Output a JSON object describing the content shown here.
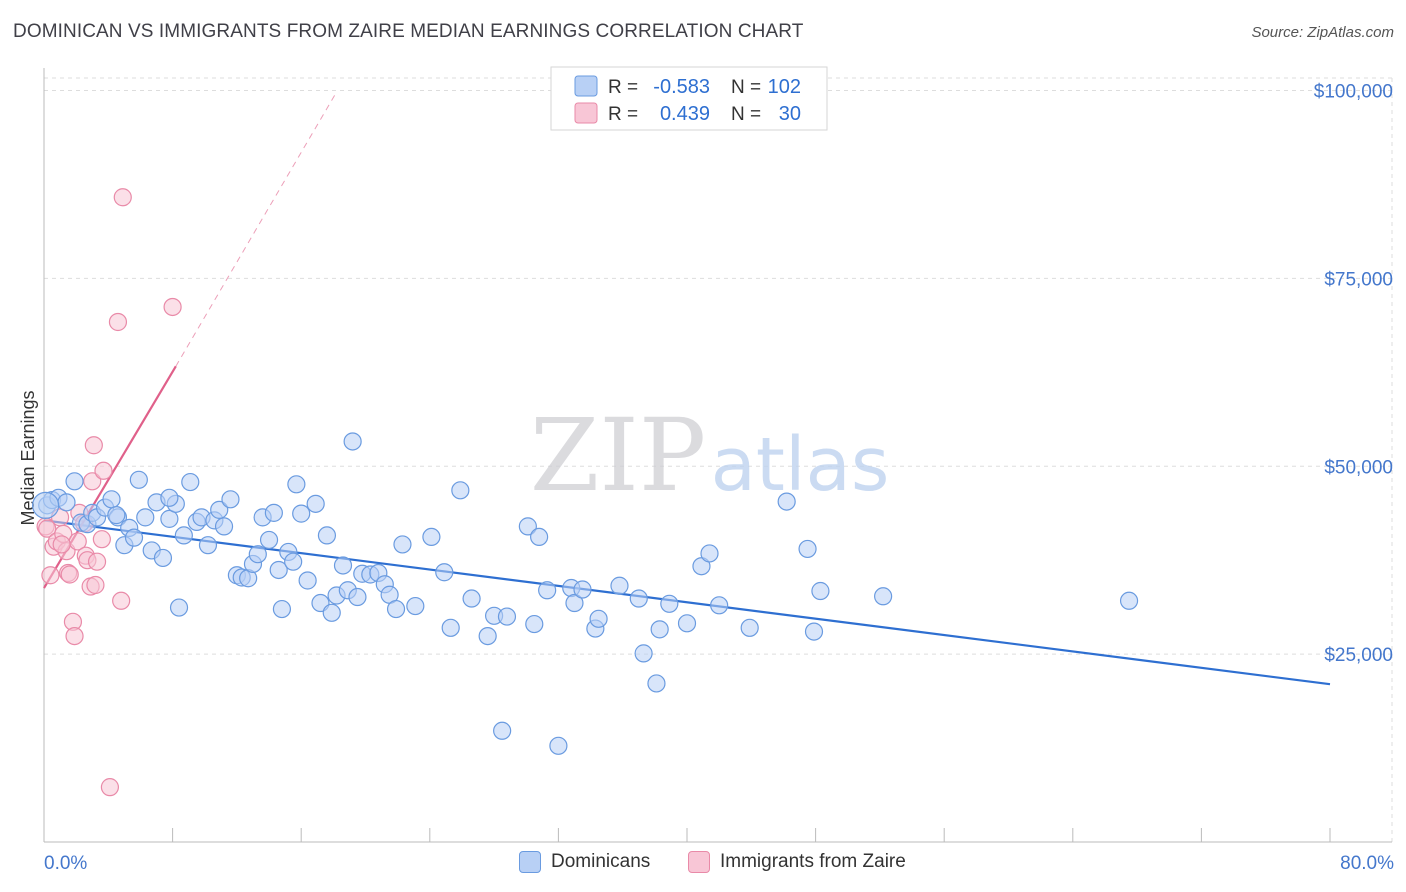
{
  "header": {
    "title": "DOMINICAN VS IMMIGRANTS FROM ZAIRE MEDIAN EARNINGS CORRELATION CHART",
    "source": "Source: ZipAtlas.com"
  },
  "watermark": {
    "zip": "ZIP",
    "atlas": "atlas"
  },
  "legend_top": [
    {
      "r_label": "R =",
      "r_value": "-0.583",
      "n_label": "N =",
      "n_value": "102"
    },
    {
      "r_label": "R =",
      "r_value": "0.439",
      "n_label": "N =",
      "n_value": "30"
    }
  ],
  "legend_bottom": [
    "Dominicans",
    "Immigrants from Zaire"
  ],
  "colors": {
    "blue_fill": "#b8d0f5",
    "blue_stroke": "#6a9be0",
    "blue_line": "#2e6fd1",
    "pink_fill": "#f8c6d6",
    "pink_stroke": "#e98aa8",
    "pink_line": "#e0608a",
    "axis_text_blue": "#4477cc",
    "grid": "#dddddd"
  },
  "chart_data": {
    "type": "scatter",
    "title": "DOMINICAN VS IMMIGRANTS FROM ZAIRE MEDIAN EARNINGS CORRELATION CHART",
    "xlabel": "",
    "ylabel": "Median Earnings",
    "xlim": [
      0,
      80
    ],
    "ylim": [
      0,
      103000
    ],
    "x_tick_labels": {
      "min": "0.0%",
      "max": "80.0%"
    },
    "y_ticks": [
      25000,
      50000,
      75000,
      100000
    ],
    "y_tick_labels": [
      "$25,000",
      "$50,000",
      "$75,000",
      "$100,000"
    ],
    "grid": true,
    "legend_placement": "top-center",
    "series": [
      {
        "name": "Dominicans",
        "r": -0.583,
        "n": 102,
        "trend": {
          "x": [
            0,
            80
          ],
          "y": [
            42800,
            21000
          ],
          "dashed_extension": false
        },
        "points": [
          [
            0.2,
            44800
          ],
          [
            0.5,
            45500
          ],
          [
            0.9,
            45800
          ],
          [
            1.4,
            45200
          ],
          [
            1.9,
            48000
          ],
          [
            2.3,
            42500
          ],
          [
            2.7,
            42300
          ],
          [
            3.0,
            43800
          ],
          [
            3.3,
            43200
          ],
          [
            3.8,
            44500
          ],
          [
            4.2,
            45600
          ],
          [
            4.6,
            43200
          ],
          [
            5.0,
            39500
          ],
          [
            5.3,
            41800
          ],
          [
            5.6,
            40500
          ],
          [
            5.9,
            48200
          ],
          [
            6.3,
            43200
          ],
          [
            6.7,
            38800
          ],
          [
            7.0,
            45200
          ],
          [
            7.4,
            37800
          ],
          [
            7.8,
            43000
          ],
          [
            8.2,
            45000
          ],
          [
            8.4,
            31200
          ],
          [
            8.7,
            40800
          ],
          [
            9.1,
            47900
          ],
          [
            9.5,
            42600
          ],
          [
            9.8,
            43200
          ],
          [
            10.2,
            39500
          ],
          [
            10.6,
            42800
          ],
          [
            10.9,
            44200
          ],
          [
            11.2,
            42000
          ],
          [
            11.6,
            45600
          ],
          [
            12.0,
            35500
          ],
          [
            12.3,
            35200
          ],
          [
            12.7,
            35100
          ],
          [
            13.0,
            37000
          ],
          [
            13.3,
            38300
          ],
          [
            13.6,
            43200
          ],
          [
            14.0,
            40200
          ],
          [
            14.3,
            43800
          ],
          [
            14.6,
            36200
          ],
          [
            14.8,
            31000
          ],
          [
            15.2,
            38600
          ],
          [
            15.5,
            37300
          ],
          [
            15.7,
            47600
          ],
          [
            16.0,
            43700
          ],
          [
            16.4,
            34800
          ],
          [
            16.9,
            45000
          ],
          [
            17.2,
            31800
          ],
          [
            17.6,
            40800
          ],
          [
            17.9,
            30500
          ],
          [
            18.2,
            32800
          ],
          [
            18.6,
            36800
          ],
          [
            18.9,
            33500
          ],
          [
            19.2,
            53300
          ],
          [
            19.5,
            32600
          ],
          [
            19.8,
            35700
          ],
          [
            20.3,
            35600
          ],
          [
            20.8,
            35800
          ],
          [
            21.2,
            34300
          ],
          [
            21.5,
            32900
          ],
          [
            21.9,
            31000
          ],
          [
            22.3,
            39600
          ],
          [
            23.1,
            31400
          ],
          [
            24.1,
            40600
          ],
          [
            24.9,
            35900
          ],
          [
            25.3,
            28500
          ],
          [
            25.9,
            46800
          ],
          [
            26.6,
            32400
          ],
          [
            27.6,
            27400
          ],
          [
            28.0,
            30100
          ],
          [
            28.8,
            30000
          ],
          [
            30.1,
            42000
          ],
          [
            30.5,
            29000
          ],
          [
            30.8,
            40600
          ],
          [
            31.3,
            33500
          ],
          [
            32.8,
            33800
          ],
          [
            33.0,
            31800
          ],
          [
            33.5,
            33600
          ],
          [
            34.3,
            28400
          ],
          [
            34.5,
            29700
          ],
          [
            35.8,
            34100
          ],
          [
            37.0,
            32400
          ],
          [
            37.3,
            25100
          ],
          [
            38.1,
            21100
          ],
          [
            38.3,
            28300
          ],
          [
            38.9,
            31700
          ],
          [
            40.0,
            29100
          ],
          [
            40.9,
            36700
          ],
          [
            41.4,
            38400
          ],
          [
            42.0,
            31500
          ],
          [
            43.9,
            28500
          ],
          [
            46.2,
            45300
          ],
          [
            47.5,
            39000
          ],
          [
            47.9,
            28000
          ],
          [
            48.3,
            33400
          ],
          [
            52.2,
            32700
          ],
          [
            67.5,
            32100
          ],
          [
            28.5,
            14800
          ],
          [
            32.0,
            12800
          ],
          [
            4.5,
            43500
          ],
          [
            7.8,
            45800
          ]
        ]
      },
      {
        "name": "Immigrants from Zaire",
        "r": 0.439,
        "n": 30,
        "trend": {
          "x": [
            0,
            8.2
          ],
          "y": [
            33800,
            63300
          ],
          "dashed_to": [
            18.2,
            99800
          ]
        },
        "points": [
          [
            0.1,
            42000
          ],
          [
            0.2,
            41700
          ],
          [
            0.4,
            35500
          ],
          [
            0.6,
            39300
          ],
          [
            0.8,
            40000
          ],
          [
            1.0,
            43200
          ],
          [
            1.2,
            41000
          ],
          [
            1.4,
            38700
          ],
          [
            1.5,
            35800
          ],
          [
            1.6,
            35600
          ],
          [
            1.8,
            29300
          ],
          [
            1.9,
            27400
          ],
          [
            2.1,
            40000
          ],
          [
            2.2,
            43800
          ],
          [
            2.5,
            42400
          ],
          [
            2.6,
            38100
          ],
          [
            2.7,
            37500
          ],
          [
            2.9,
            34000
          ],
          [
            3.0,
            48000
          ],
          [
            3.1,
            52800
          ],
          [
            3.2,
            34200
          ],
          [
            3.3,
            37300
          ],
          [
            3.7,
            49400
          ],
          [
            4.1,
            7300
          ],
          [
            4.6,
            69200
          ],
          [
            4.8,
            32100
          ],
          [
            4.9,
            85800
          ],
          [
            8.0,
            71200
          ],
          [
            1.1,
            39600
          ],
          [
            3.6,
            40300
          ]
        ]
      }
    ]
  }
}
